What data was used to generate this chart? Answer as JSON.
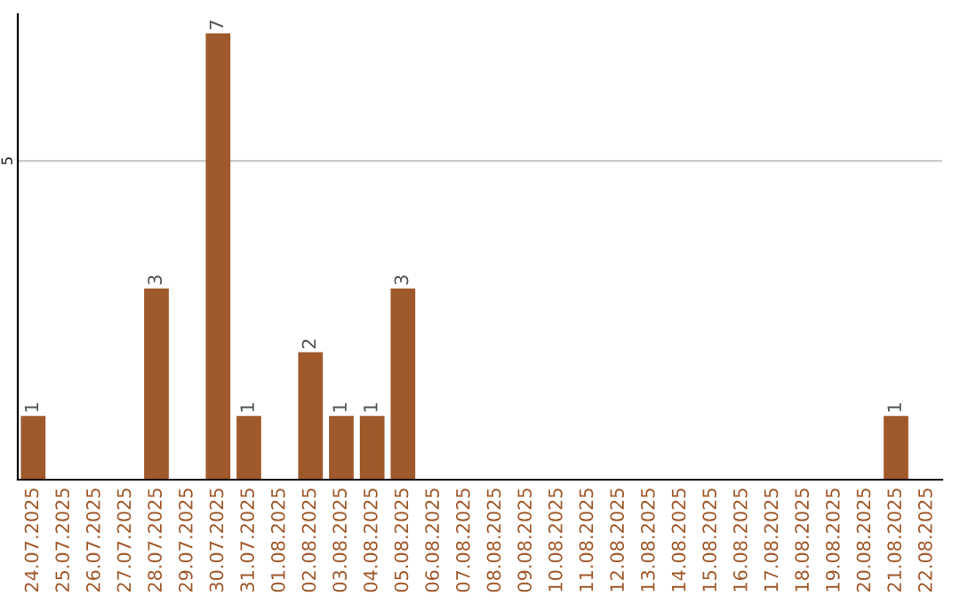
{
  "chart_data": {
    "type": "bar",
    "categories": [
      "24.07.2025",
      "25.07.2025",
      "26.07.2025",
      "27.07.2025",
      "28.07.2025",
      "29.07.2025",
      "30.07.2025",
      "31.07.2025",
      "01.08.2025",
      "02.08.2025",
      "03.08.2025",
      "04.08.2025",
      "05.08.2025",
      "06.08.2025",
      "07.08.2025",
      "08.08.2025",
      "09.08.2025",
      "10.08.2025",
      "11.08.2025",
      "12.08.2025",
      "13.08.2025",
      "14.08.2025",
      "15.08.2025",
      "16.08.2025",
      "17.08.2025",
      "18.08.2025",
      "19.08.2025",
      "20.08.2025",
      "21.08.2025",
      "22.08.2025"
    ],
    "values": [
      1,
      0,
      0,
      0,
      3,
      0,
      7,
      1,
      0,
      2,
      1,
      1,
      3,
      0,
      0,
      0,
      0,
      0,
      0,
      0,
      0,
      0,
      0,
      0,
      0,
      0,
      0,
      0,
      1,
      0
    ],
    "value_labels": [
      "1",
      null,
      null,
      null,
      "3",
      null,
      "7",
      "1",
      null,
      "2",
      "1",
      "1",
      "3",
      null,
      null,
      null,
      null,
      null,
      null,
      null,
      null,
      null,
      null,
      null,
      null,
      null,
      null,
      null,
      "1",
      null
    ],
    "color": "#a0592b",
    "ylim": [
      0,
      7.3
    ],
    "yticks": [
      5
    ],
    "grid": "y",
    "legend": false
  }
}
